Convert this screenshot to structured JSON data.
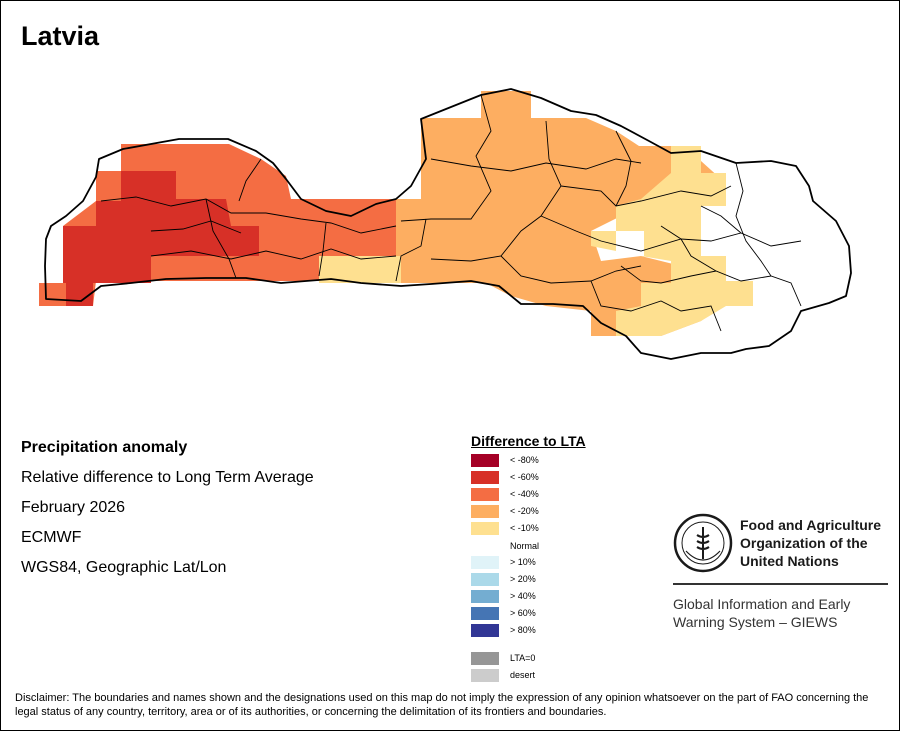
{
  "title": "Latvia",
  "info": {
    "heading": "Precipitation anomaly",
    "subtitle": "Relative difference to Long Term Average",
    "period": "February 2026",
    "source": "ECMWF",
    "projection": "WGS84, Geographic Lat/Lon"
  },
  "legend": {
    "title": "Difference to LTA",
    "items": [
      {
        "label": "< -80%",
        "color": "#a50026"
      },
      {
        "label": "< -60%",
        "color": "#d73027"
      },
      {
        "label": "< -40%",
        "color": "#f46d43"
      },
      {
        "label": "< -20%",
        "color": "#fdae61"
      },
      {
        "label": "< -10%",
        "color": "#fee090"
      },
      {
        "label": "> 10%",
        "color": "#e0f3f8"
      },
      {
        "label": "> 20%",
        "color": "#abd9e9"
      },
      {
        "label": "> 40%",
        "color": "#74add1"
      },
      {
        "label": "> 60%",
        "color": "#4575b4"
      },
      {
        "label": "> 80%",
        "color": "#313695"
      },
      {
        "label": "LTA=0",
        "color": "#969696"
      },
      {
        "label": "desert",
        "color": "#cccccc"
      }
    ],
    "normal_label": "Normal"
  },
  "fao": {
    "line1": "Food and Agriculture",
    "line2": "Organization of the",
    "line3": "United Nations",
    "giews1": "Global Information and Early",
    "giews2": "Warning System – GIEWS"
  },
  "disclaimer": "Disclaimer: The boundaries and names shown and the designations used on this map do not imply the expression of any opinion whatsoever on the part of FAO concerning the legal status of any country, territory, area or of its authorities, or concerning the delimitation of its frontiers and boundaries."
}
